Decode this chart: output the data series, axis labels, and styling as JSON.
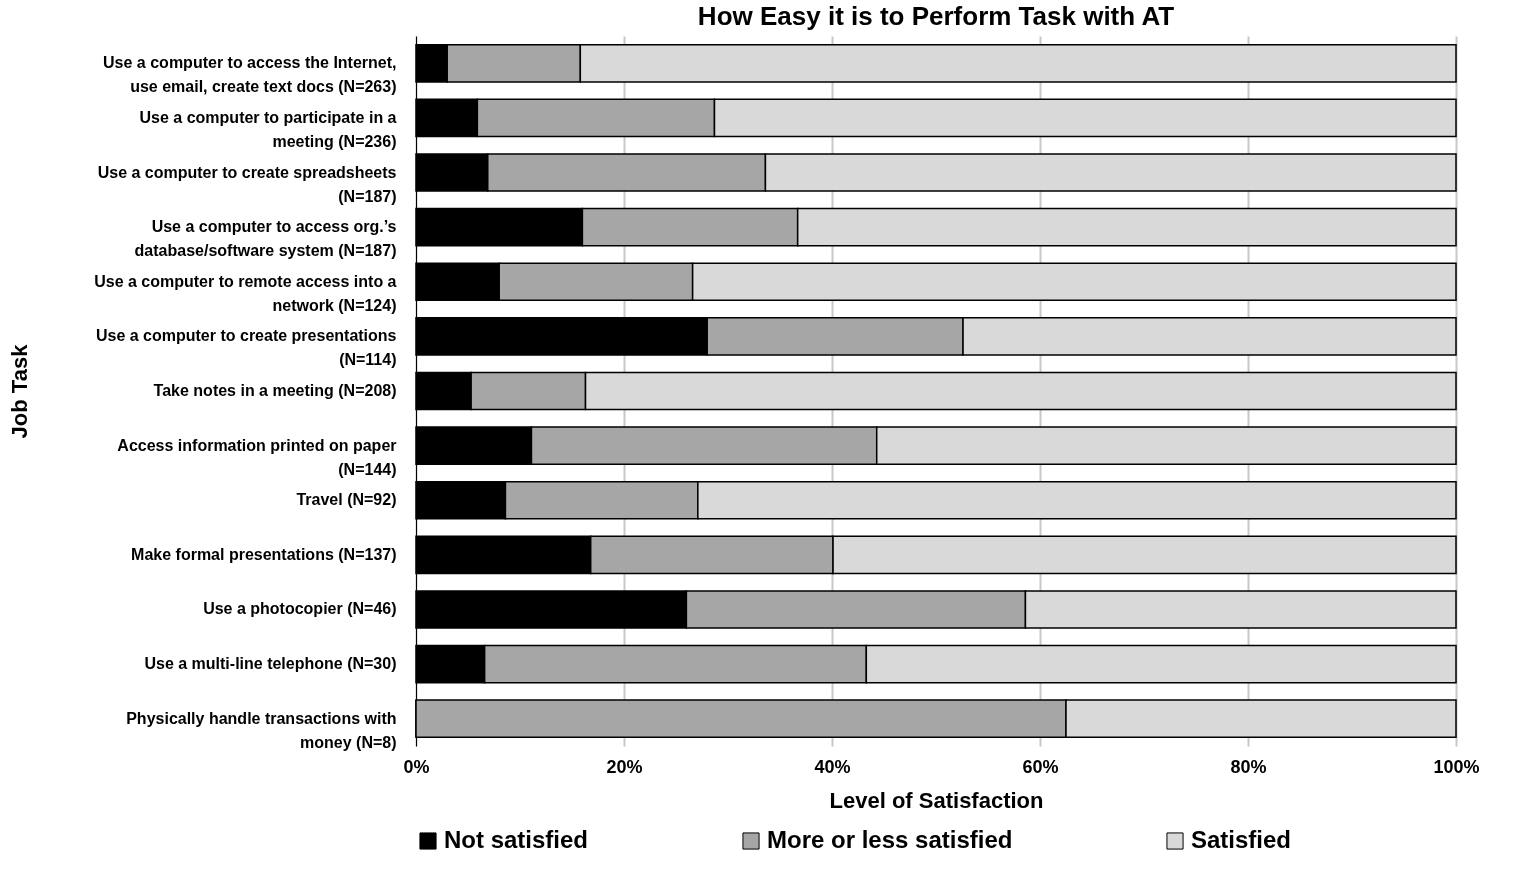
{
  "chart_data": {
    "type": "bar",
    "orientation": "horizontal",
    "stacked": true,
    "title": "How Easy it is to Perform Task with AT",
    "xlabel": "Level of Satisfaction",
    "ylabel": "Job Task",
    "categories": [
      "Use a computer to access the Internet, use email, create text docs (N=263)",
      "Use a computer to participate in a meeting (N=236)",
      "Use a computer to create spreadsheets (N=187)",
      "Use a computer to access org.’s database/software system (N=187)",
      "Use a computer to remote access into a network (N=124)",
      "Use a computer to create presentations (N=114)",
      "Take notes in a meeting (N=208)",
      "Access information printed on paper (N=144)",
      "Travel (N=92)",
      "Make formal presentations (N=137)",
      "Use a photocopier (N=46)",
      "Use a multi-line telephone (N=30)",
      "Physically handle transactions with money (N=8)"
    ],
    "series": [
      {
        "name": "Not satisfied",
        "color": "#000000",
        "values": [
          3,
          5.9,
          6.9,
          16,
          8,
          28,
          5.3,
          11.1,
          8.6,
          16.8,
          26,
          6.6,
          0
        ]
      },
      {
        "name": "More or less satisfied",
        "color": "#a6a6a6",
        "values": [
          12.8,
          22.8,
          26.7,
          20.7,
          18.6,
          24.6,
          11,
          33.2,
          18.5,
          23.3,
          32.6,
          36.7,
          62.5
        ]
      },
      {
        "name": "Satisfied",
        "color": "#d9d9d9",
        "values": [
          84.2,
          71.3,
          66.4,
          63.3,
          73.4,
          47.4,
          83.7,
          55.7,
          72.9,
          59.9,
          41.4,
          56.7,
          37.5
        ]
      }
    ],
    "xlim": [
      0,
      100
    ],
    "xticks": [
      {
        "value": 0,
        "label": "0%"
      },
      {
        "value": 20,
        "label": "20%"
      },
      {
        "value": 40,
        "label": "40%"
      },
      {
        "value": 60,
        "label": "60%"
      },
      {
        "value": 80,
        "label": "80%"
      },
      {
        "value": 100,
        "label": "100%"
      }
    ],
    "grid": "x",
    "legend": "bottom"
  }
}
